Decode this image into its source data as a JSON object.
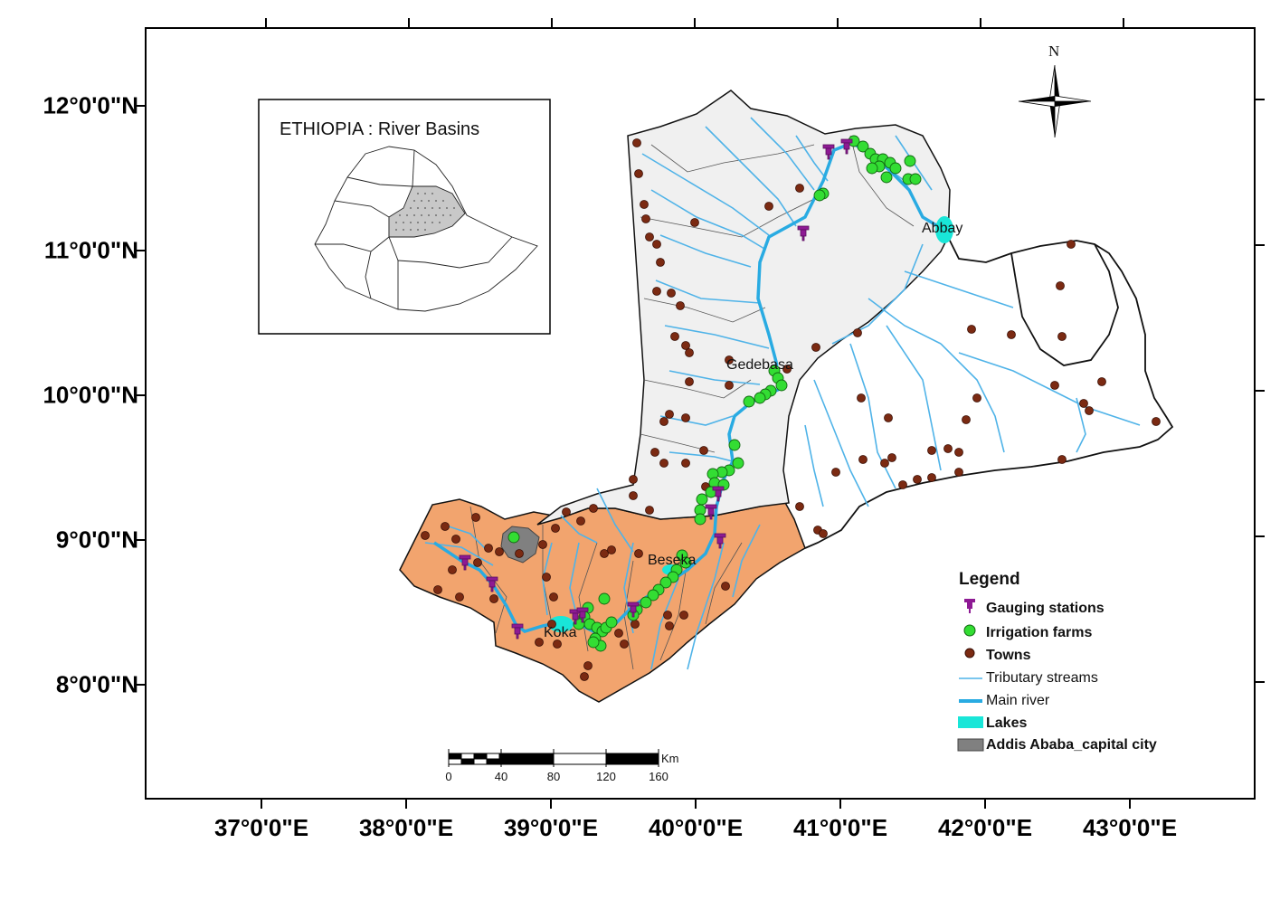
{
  "map": {
    "lat_labels": [
      "12°0'0\"N",
      "11°0'0\"N",
      "10°0'0\"N",
      "9°0'0\"N",
      "8°0'0\"N"
    ],
    "lon_labels": [
      "37°0'0\"E",
      "38°0'0\"E",
      "39°0'0\"E",
      "40°0'0\"E",
      "41°0'0\"E",
      "42°0'0\"E",
      "43°0'0\"E"
    ],
    "places": {
      "abbay": "Abbay",
      "gedebasa": "Gedebasa",
      "beseka": "Beseka",
      "koka": "Koka"
    },
    "inset_title": "ETHIOPIA : River Basins",
    "north": "N",
    "scale": {
      "ticks": [
        "0",
        "40",
        "80",
        "120",
        "160"
      ],
      "unit": "Km"
    },
    "legend": {
      "title": "Legend",
      "items": [
        "Gauging stations",
        "Irrigation farms",
        "Towns",
        "Tributary streams",
        "Main river",
        "Lakes",
        "Addis Ababa_capital city"
      ]
    },
    "colors": {
      "upper_basin": "#f0f0f0",
      "lower_basin": "#f2a46e",
      "stream": "#4fb3e8",
      "main_river": "#29abe2",
      "lake": "#19e6d8",
      "capital": "#808080",
      "farm": "#33dd33",
      "town": "#7b2a12",
      "station": "#8e1a94"
    }
  }
}
